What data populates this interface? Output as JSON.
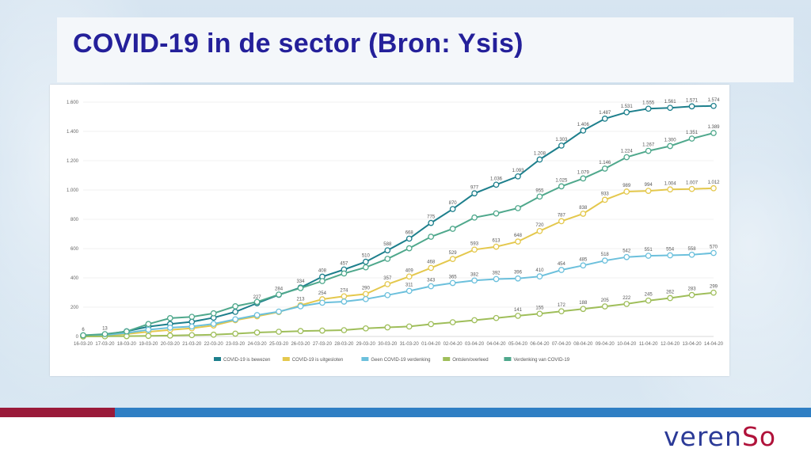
{
  "slide": {
    "title": "COVID-19 in de sector (Bron: Ysis)",
    "logo": {
      "text_main": "veren",
      "text_accent": "So"
    },
    "colors": {
      "title": "#24209a",
      "stripe_blue": "#2f7fc4",
      "stripe_red": "#9a1a3a"
    }
  },
  "chart_data": {
    "type": "line",
    "title": "",
    "xlabel": "",
    "ylabel": "",
    "ylim": [
      0,
      1600
    ],
    "yticks": [
      0,
      200,
      400,
      600,
      800,
      1000,
      1200,
      1400,
      1600
    ],
    "ytick_labels": [
      "0",
      "200",
      "400",
      "600",
      "800",
      "1.000",
      "1.200",
      "1.400",
      "1.600"
    ],
    "grid": "horizontal",
    "legend_position": "bottom",
    "categories": [
      "16-03-20",
      "17-03-20",
      "18-03-20",
      "19-03-20",
      "20-03-20",
      "21-03-20",
      "22-03-20",
      "23-03-20",
      "24-03-20",
      "25-03-20",
      "26-03-20",
      "27-03-20",
      "28-03-20",
      "29-03-20",
      "30-03-20",
      "31-03-20",
      "01-04-20",
      "02-04-20",
      "03-04-20",
      "04-04-20",
      "05-04-20",
      "06-04-20",
      "07-04-20",
      "08-04-20",
      "09-04-20",
      "10-04-20",
      "11-04-20",
      "12-04-20",
      "13-04-20",
      "14-04-20"
    ],
    "series": [
      {
        "name": "COVID-19 is bewezen",
        "color": "#1d7f8c",
        "values": [
          6,
          13,
          35,
          67,
          85,
          100,
          128,
          168,
          227,
          284,
          334,
          408,
          457,
          510,
          588,
          668,
          775,
          870,
          977,
          1036,
          1093,
          1208,
          1303,
          1406,
          1487,
          1531,
          1555,
          1561,
          1571,
          1574
        ],
        "labels": [
          "6",
          "13",
          "",
          "",
          "",
          "",
          "",
          "",
          "227",
          "284",
          "334",
          "408",
          "457",
          "510",
          "588",
          "668",
          "775",
          "870",
          "977",
          "1.036",
          "1.093",
          "1.208",
          "1.303",
          "1.406",
          "1.487",
          "1.531",
          "1.555",
          "1.561",
          "1.571",
          "1.574"
        ]
      },
      {
        "name": "COVID-19 is uitgesloten",
        "color": "#e4c84d",
        "values": [
          3,
          6,
          17,
          32,
          45,
          56,
          75,
          111,
          138,
          167,
          213,
          254,
          274,
          290,
          357,
          409,
          468,
          529,
          593,
          613,
          648,
          720,
          787,
          838,
          933,
          989,
          994,
          1004,
          1007,
          1012
        ],
        "labels": [
          "",
          "",
          "",
          "",
          "",
          "",
          "",
          "",
          "",
          "",
          "213",
          "254",
          "274",
          "290",
          "357",
          "409",
          "468",
          "529",
          "593",
          "613",
          "648",
          "720",
          "787",
          "838",
          "933",
          "989",
          "994",
          "1.004",
          "1.007",
          "1.012"
        ]
      },
      {
        "name": "Geen COVID-19 verdenking",
        "color": "#6cc0dc",
        "values": [
          4,
          9,
          24,
          46,
          60,
          68,
          86,
          117,
          146,
          170,
          206,
          230,
          238,
          255,
          282,
          311,
          343,
          365,
          382,
          392,
          396,
          410,
          454,
          485,
          518,
          542,
          551,
          554,
          558,
          570
        ],
        "labels": [
          "",
          "",
          "",
          "",
          "",
          "",
          "",
          "",
          "",
          "",
          "",
          "",
          "",
          "",
          "",
          "311",
          "343",
          "365",
          "382",
          "392",
          "396",
          "410",
          "454",
          "485",
          "518",
          "542",
          "551",
          "554",
          "558",
          "570"
        ]
      },
      {
        "name": "Ontslen/overleed",
        "color": "#9fbe5a",
        "values": [
          0,
          1,
          2,
          4,
          6,
          9,
          12,
          19,
          27,
          32,
          37,
          40,
          43,
          55,
          62,
          68,
          84,
          97,
          111,
          126,
          141,
          155,
          172,
          188,
          205,
          222,
          245,
          262,
          283,
          299
        ],
        "labels": [
          "",
          "",
          "",
          "",
          "",
          "",
          "",
          "",
          "",
          "",
          "",
          "",
          "",
          "",
          "",
          "",
          "",
          "",
          "",
          "",
          "141",
          "155",
          "172",
          "188",
          "205",
          "222",
          "245",
          "262",
          "283",
          "299"
        ]
      },
      {
        "name": "Verdenking van COVID-19",
        "color": "#4fa88c",
        "values": [
          8,
          16,
          34,
          85,
          125,
          134,
          158,
          206,
          236,
          286,
          330,
          378,
          430,
          472,
          530,
          602,
          681,
          735,
          812,
          840,
          876,
          955,
          1025,
          1079,
          1146,
          1224,
          1267,
          1300,
          1351,
          1389
        ],
        "labels": [
          "",
          "",
          "",
          "",
          "",
          "",
          "",
          "",
          "",
          "",
          "",
          "",
          "",
          "",
          "",
          "",
          "",
          "",
          "",
          "",
          "",
          "955",
          "1.025",
          "1.079",
          "1.146",
          "1.224",
          "1.267",
          "1.300",
          "1.351",
          "1.389"
        ]
      }
    ]
  }
}
